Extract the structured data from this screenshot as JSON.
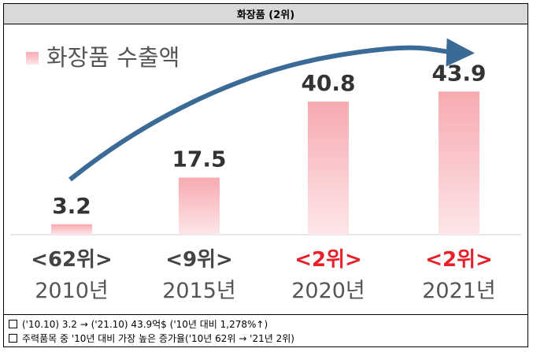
{
  "header": {
    "title": "화장품 (2위)"
  },
  "chart_data": {
    "type": "bar",
    "title": "",
    "legend": {
      "label": "화장품 수출액",
      "position": "top-left"
    },
    "categories": [
      "2010년",
      "2015년",
      "2020년",
      "2021년"
    ],
    "values": [
      3.2,
      17.5,
      40.8,
      43.9
    ],
    "value_labels": [
      "3.2",
      "17.5",
      "40.8",
      "43.9"
    ],
    "ranks": [
      "<62위>",
      "<9위>",
      "<2위>",
      "<2위>"
    ],
    "rank_highlight": [
      false,
      false,
      true,
      true
    ],
    "ylim": [
      0,
      50
    ],
    "grid": false,
    "trend_arrow": true,
    "colors": {
      "bar_top": "#f7aab0",
      "bar_bottom": "#fde6e8",
      "arrow": "#3a6a96",
      "rank_default": "#444444",
      "rank_highlight": "#e8202a",
      "legend_text": "#555555"
    }
  },
  "notes": [
    "('10.10) 3.2 → ('21.10) 43.9억$ ('10년 대비 1,278%↑)",
    "주력품목 중 '10년 대비 가장 높은 증가율('10년 62위 → '21년 2위)"
  ]
}
